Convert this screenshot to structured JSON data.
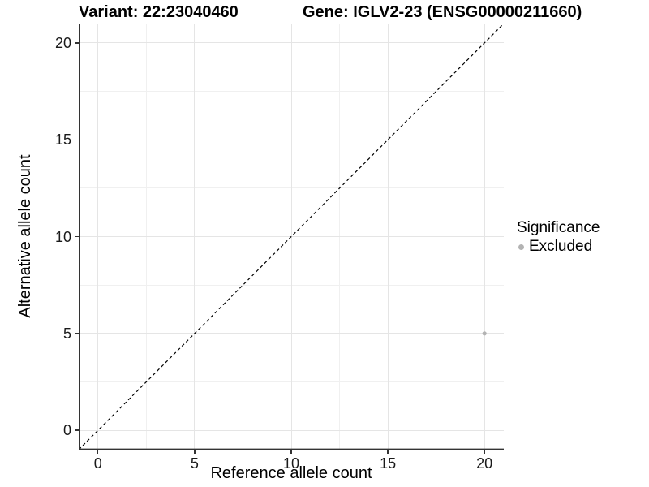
{
  "chart_data": {
    "type": "scatter",
    "titles": {
      "left": "Variant: 22:23040460",
      "right": "Gene: IGLV2-23 (ENSG00000211660)"
    },
    "xlabel": "Reference allele count",
    "ylabel": "Alternative allele count",
    "xlim": [
      -1,
      21
    ],
    "ylim": [
      -1,
      21
    ],
    "x_ticks": [
      0,
      5,
      10,
      15,
      20
    ],
    "y_ticks": [
      0,
      5,
      10,
      15,
      20
    ],
    "grid": {
      "major": true,
      "minor": true
    },
    "reference_line": {
      "kind": "identity",
      "style": "dashed",
      "color": "#000000"
    },
    "series": [
      {
        "name": "Excluded",
        "color": "#b3b3b3",
        "points": [
          {
            "x": 20,
            "y": 5
          }
        ]
      }
    ],
    "legend": {
      "title": "Significance",
      "position": "right",
      "entries": [
        {
          "label": "Excluded",
          "color": "#b3b3b3"
        }
      ]
    },
    "colors": {
      "axis": "#333333",
      "tick_text": "#1a1a1a",
      "grid_major": "#e5e5e5",
      "grid_minor": "#f0f0f0",
      "background": "#ffffff"
    }
  }
}
